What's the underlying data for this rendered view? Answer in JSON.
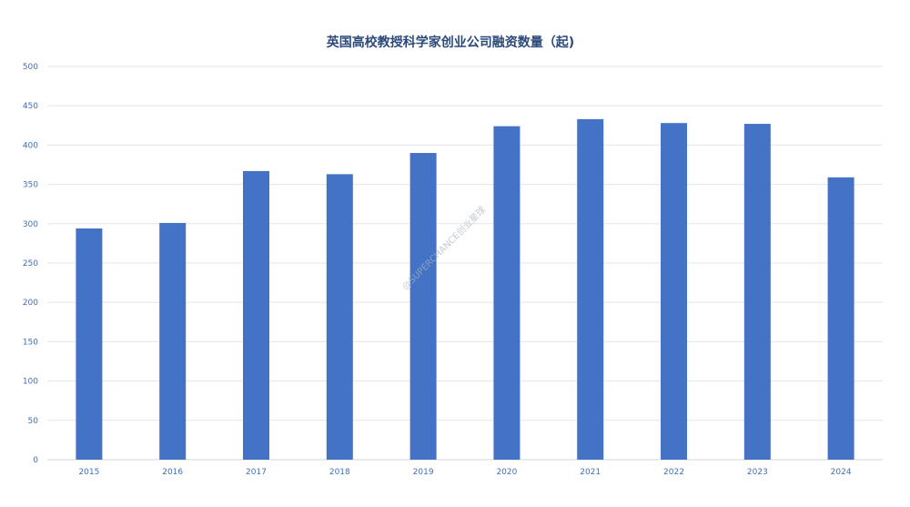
{
  "chart_data": {
    "type": "bar",
    "title": "英国高校教授科学家创业公司融资数量（起)",
    "xlabel": "",
    "ylabel": "",
    "categories": [
      "2015",
      "2016",
      "2017",
      "2018",
      "2019",
      "2020",
      "2021",
      "2022",
      "2023",
      "2024"
    ],
    "values": [
      294,
      301,
      367,
      363,
      390,
      424,
      433,
      428,
      427,
      359
    ],
    "ylim": [
      0,
      500
    ],
    "yticks": [
      0,
      50,
      100,
      150,
      200,
      250,
      300,
      350,
      400,
      450,
      500
    ],
    "grid": true,
    "legend": "none",
    "bar_color": "#4472c4"
  },
  "watermark": "@SUPERCHANCE创业星球"
}
